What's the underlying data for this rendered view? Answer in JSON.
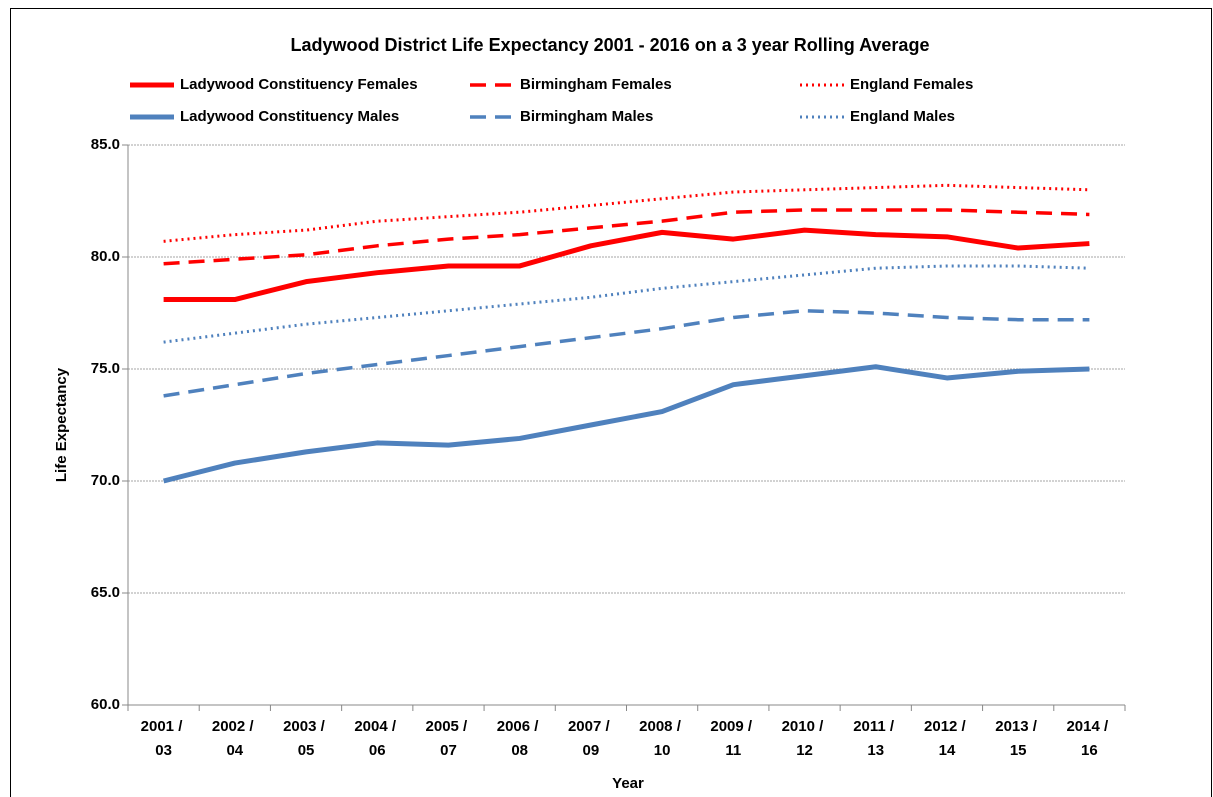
{
  "chart_data": {
    "type": "line",
    "title": "Ladywood District Life Expectancy 2001 - 2016 on a 3 year Rolling Average",
    "xlabel": "Year",
    "ylabel": "Life Expectancy",
    "categories": [
      "2001 / 03",
      "2002 / 04",
      "2003 / 05",
      "2004 / 06",
      "2005 / 07",
      "2006 / 08",
      "2007 / 09",
      "2008 / 10",
      "2009 / 11",
      "2010 / 12",
      "2011 / 13",
      "2012 / 14",
      "2013 / 15",
      "2014 / 16"
    ],
    "series": [
      {
        "name": "Ladywood Constituency Females",
        "color": "#ff0000",
        "dash": "solid",
        "values": [
          78.1,
          78.1,
          78.9,
          79.3,
          79.6,
          79.6,
          80.5,
          81.1,
          80.8,
          81.2,
          81.0,
          80.9,
          80.4,
          80.6
        ]
      },
      {
        "name": "Birmingham Females",
        "color": "#ff0000",
        "dash": "dashed",
        "values": [
          79.7,
          79.9,
          80.1,
          80.5,
          80.8,
          81.0,
          81.3,
          81.6,
          82.0,
          82.1,
          82.1,
          82.1,
          82.0,
          81.9
        ]
      },
      {
        "name": "England Females",
        "color": "#ff0000",
        "dash": "dotted",
        "values": [
          80.7,
          81.0,
          81.2,
          81.6,
          81.8,
          82.0,
          82.3,
          82.6,
          82.9,
          83.0,
          83.1,
          83.2,
          83.1,
          83.0
        ]
      },
      {
        "name": "Ladywood Constituency Males",
        "color": "#4f81bd",
        "dash": "solid",
        "values": [
          70.0,
          70.8,
          71.3,
          71.7,
          71.6,
          71.9,
          72.5,
          73.1,
          74.3,
          74.7,
          75.1,
          74.6,
          74.9,
          75.0
        ]
      },
      {
        "name": "Birmingham Males",
        "color": "#4f81bd",
        "dash": "dashed",
        "values": [
          73.8,
          74.3,
          74.8,
          75.2,
          75.6,
          76.0,
          76.4,
          76.8,
          77.3,
          77.6,
          77.5,
          77.3,
          77.2,
          77.2
        ]
      },
      {
        "name": "England Males",
        "color": "#4f81bd",
        "dash": "dotted",
        "values": [
          76.2,
          76.6,
          77.0,
          77.3,
          77.6,
          77.9,
          78.2,
          78.6,
          78.9,
          79.2,
          79.5,
          79.6,
          79.6,
          79.5
        ]
      }
    ],
    "ylim": [
      60,
      85
    ],
    "yticks": [
      {
        "value": 60,
        "label": "60.0"
      },
      {
        "value": 65,
        "label": "65.0"
      },
      {
        "value": 70,
        "label": "70.0"
      },
      {
        "value": 75,
        "label": "75.0"
      },
      {
        "value": 80,
        "label": "80.0"
      },
      {
        "value": 85,
        "label": "85.0"
      }
    ],
    "grid": true,
    "legend": "top"
  }
}
